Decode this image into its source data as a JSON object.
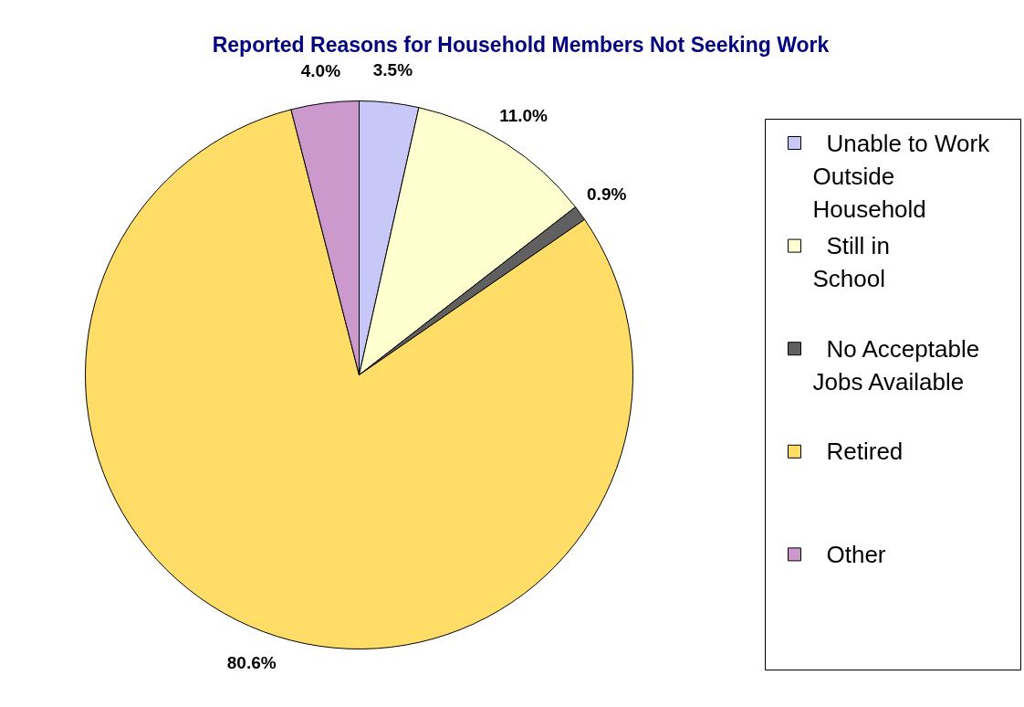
{
  "chart_data": {
    "type": "pie",
    "title": "Reported Reasons for Household Members Not Seeking Work",
    "categories": [
      "Unable to Work Outside Household",
      "Still in School",
      "No Acceptable Jobs Available",
      "Retired",
      "Other"
    ],
    "values": [
      3.5,
      11.0,
      0.9,
      80.6,
      4.0
    ],
    "colors": [
      "#c8c8f8",
      "#ffffd0",
      "#606060",
      "#ffdd66",
      "#cc99cc"
    ],
    "value_labels": [
      "3.5%",
      "11.0%",
      "0.9%",
      "80.6%",
      "4.0%"
    ],
    "legend": "right"
  }
}
